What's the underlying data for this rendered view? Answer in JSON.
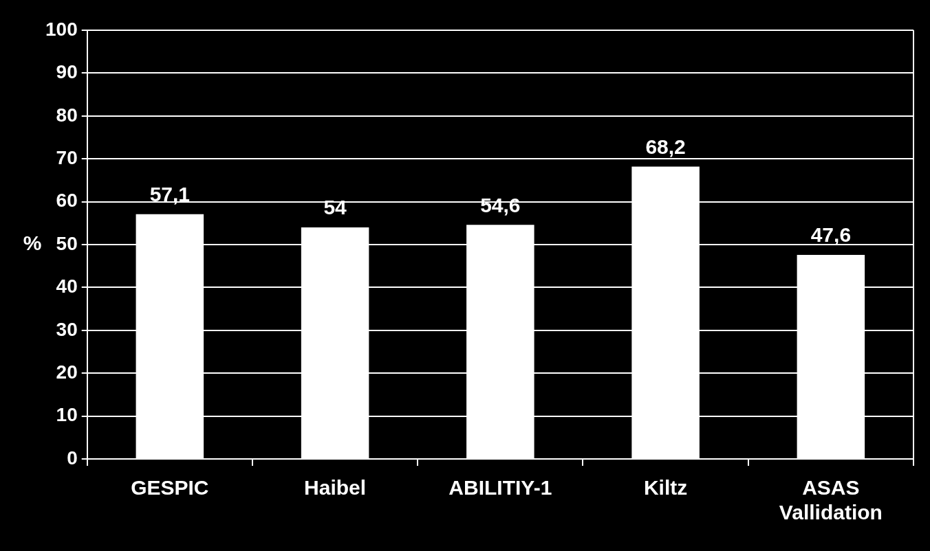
{
  "chart_data": {
    "type": "bar",
    "ylabel": "%",
    "categories": [
      "GESPIC",
      "Haibel",
      "ABILITIY-1",
      "Kiltz",
      "ASAS Vallidation"
    ],
    "values": [
      57.1,
      54,
      54.6,
      68.2,
      47.6
    ],
    "value_labels": [
      "57,1",
      "54",
      "54,6",
      "68,2",
      "47,6"
    ],
    "data_labels": true,
    "color": "#ffffff",
    "ylim": [
      0,
      100
    ],
    "yticks": [
      0,
      10,
      20,
      30,
      40,
      50,
      60,
      70,
      80,
      90,
      100
    ],
    "grid": true
  }
}
